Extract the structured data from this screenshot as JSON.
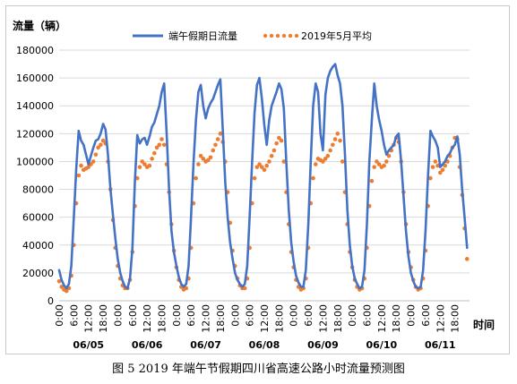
{
  "caption": "图 5 2019 年端午节假期四川省高速公路小时流量预测图",
  "chart_data": {
    "type": "line",
    "ylabel": "流量（辆）",
    "xlabel": "时间",
    "ylim": [
      0,
      180000
    ],
    "yticks": [
      0,
      20000,
      40000,
      60000,
      80000,
      100000,
      120000,
      140000,
      160000,
      180000
    ],
    "ytick_labels": [
      "0",
      "20000",
      "40000",
      "60000",
      "80000",
      "100000",
      "120000",
      "140000",
      "160000",
      "180000"
    ],
    "xtick_labels": [
      "0:00",
      "6:00",
      "12:00",
      "18:00"
    ],
    "days": [
      "06/05",
      "06/06",
      "06/07",
      "06/08",
      "06/09",
      "06/10",
      "06/11"
    ],
    "legend_position": "top",
    "series": [
      {
        "name": "端午假期日流量",
        "style": "solid-line",
        "color": "#4472c4",
        "values": [
          22000,
          15000,
          11000,
          9000,
          12000,
          25000,
          60000,
          95000,
          122000,
          115000,
          112000,
          105000,
          98000,
          104000,
          110000,
          115000,
          116000,
          120000,
          127000,
          123000,
          105000,
          80000,
          62000,
          45000,
          30000,
          20000,
          14000,
          10000,
          9000,
          16000,
          38000,
          85000,
          119000,
          113000,
          116000,
          117000,
          112000,
          118000,
          125000,
          128000,
          134000,
          140000,
          150000,
          156000,
          120000,
          80000,
          50000,
          35000,
          25000,
          17000,
          12000,
          10000,
          12000,
          25000,
          60000,
          98000,
          130000,
          150000,
          155000,
          140000,
          131000,
          138000,
          142000,
          145000,
          150000,
          155000,
          159000,
          122000,
          85000,
          60000,
          42000,
          30000,
          20000,
          15000,
          12000,
          10000,
          12000,
          25000,
          60000,
          100000,
          135000,
          155000,
          160000,
          145000,
          126000,
          112000,
          130000,
          140000,
          145000,
          150000,
          156000,
          152000,
          138000,
          100000,
          65000,
          42000,
          28000,
          18000,
          13000,
          10000,
          10000,
          22000,
          55000,
          100000,
          140000,
          156000,
          150000,
          120000,
          108000,
          148000,
          160000,
          165000,
          168000,
          170000,
          162000,
          156000,
          140000,
          105000,
          65000,
          40000,
          25000,
          16000,
          12000,
          9000,
          10000,
          22000,
          55000,
          100000,
          130000,
          156000,
          140000,
          130000,
          122000,
          112000,
          105000,
          108000,
          110000,
          112000,
          118000,
          120000,
          100000,
          75000,
          50000,
          32000,
          20000,
          14000,
          10000,
          9000,
          10000,
          22000,
          50000,
          90000,
          122000,
          118000,
          115000,
          110000,
          96000,
          98000,
          100000,
          104000,
          106000,
          110000,
          112000,
          118000,
          105000,
          80000,
          60000,
          38000
        ]
      },
      {
        "name": "2019年5月平均",
        "style": "dotted",
        "color": "#ed7d31",
        "values": [
          14000,
          10000,
          8000,
          7000,
          9000,
          18000,
          40000,
          70000,
          90000,
          97000,
          94000,
          95000,
          96000,
          98000,
          100000,
          105000,
          110000,
          112000,
          115000,
          113000,
          100000,
          80000,
          58000,
          38000,
          25000,
          16000,
          11000,
          9000,
          9000,
          15000,
          35000,
          68000,
          88000,
          96000,
          100000,
          98000,
          96000,
          97000,
          102000,
          106000,
          110000,
          112000,
          116000,
          112000,
          98000,
          78000,
          55000,
          36000,
          24000,
          15000,
          10000,
          8000,
          9000,
          16000,
          38000,
          70000,
          88000,
          98000,
          104000,
          102000,
          100000,
          101000,
          103000,
          108000,
          112000,
          116000,
          120000,
          114000,
          100000,
          78000,
          56000,
          36000,
          25000,
          16000,
          11000,
          9000,
          9000,
          16000,
          38000,
          70000,
          88000,
          96000,
          98000,
          96000,
          94000,
          97000,
          100000,
          104000,
          108000,
          113000,
          117000,
          115000,
          100000,
          78000,
          55000,
          35000,
          24000,
          15000,
          10000,
          8000,
          9000,
          16000,
          38000,
          70000,
          88000,
          98000,
          102000,
          101000,
          100000,
          102000,
          104000,
          108000,
          112000,
          116000,
          120000,
          115000,
          100000,
          78000,
          55000,
          35000,
          24000,
          15000,
          10000,
          8000,
          9000,
          16000,
          38000,
          68000,
          86000,
          96000,
          100000,
          98000,
          96000,
          97000,
          100000,
          104000,
          108000,
          112000,
          117000,
          114000,
          100000,
          78000,
          55000,
          35000,
          24000,
          15000,
          10000,
          8000,
          9000,
          16000,
          36000,
          68000,
          88000,
          96000,
          100000,
          97000,
          92000,
          94000,
          97000,
          100000,
          104000,
          110000,
          117000,
          116000,
          96000,
          76000,
          52000,
          30000
        ]
      }
    ]
  }
}
